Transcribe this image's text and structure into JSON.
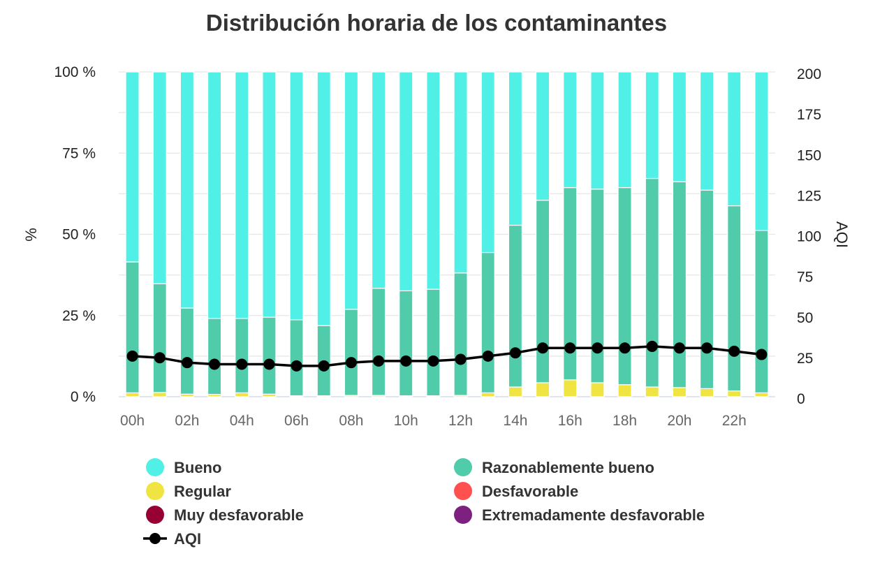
{
  "chart_data": {
    "type": "bar",
    "title": "Distribución horaria de los contaminantes",
    "ylabel": "%",
    "y2label": "AQI",
    "ylim": [
      0,
      100
    ],
    "y2lim": [
      0,
      200
    ],
    "yticks": [
      "0 %",
      "25 %",
      "50 %",
      "75 %",
      "100 %"
    ],
    "y2ticks": [
      "0",
      "25",
      "50",
      "75",
      "100",
      "125",
      "150",
      "175",
      "200"
    ],
    "categories": [
      "00h",
      "01h",
      "02h",
      "03h",
      "04h",
      "05h",
      "06h",
      "07h",
      "08h",
      "09h",
      "10h",
      "11h",
      "12h",
      "13h",
      "14h",
      "15h",
      "16h",
      "17h",
      "18h",
      "19h",
      "20h",
      "21h",
      "22h",
      "23h"
    ],
    "xtick_labels": [
      "00h",
      "02h",
      "04h",
      "06h",
      "08h",
      "10h",
      "12h",
      "14h",
      "16h",
      "18h",
      "20h",
      "22h"
    ],
    "stacked": true,
    "series": [
      {
        "name": "Regular",
        "color": "#f0e442",
        "values": [
          1.2,
          1.3,
          0.8,
          0.7,
          1.2,
          0.8,
          0.3,
          0.3,
          0.4,
          0.4,
          0.3,
          0.3,
          0.4,
          1.2,
          3.0,
          4.3,
          5.2,
          4.3,
          3.7,
          3.0,
          2.8,
          2.5,
          1.8,
          1.2
        ]
      },
      {
        "name": "Razonablemente bueno",
        "color": "#50ccaa",
        "values": [
          40.3,
          33.5,
          26.5,
          23.4,
          22.9,
          23.7,
          23.4,
          21.6,
          26.5,
          33.0,
          32.3,
          32.8,
          37.7,
          43.2,
          49.8,
          56.2,
          59.2,
          59.6,
          60.7,
          64.2,
          63.4,
          61.1,
          57.0,
          50.0
        ]
      },
      {
        "name": "Bueno",
        "color": "#50f0e6",
        "values": [
          58.5,
          65.2,
          72.7,
          75.9,
          75.9,
          75.5,
          76.3,
          78.1,
          73.1,
          66.6,
          67.4,
          66.9,
          61.9,
          55.6,
          47.2,
          39.5,
          35.6,
          36.1,
          35.6,
          32.8,
          33.8,
          36.4,
          41.2,
          48.8
        ]
      }
    ],
    "line": {
      "name": "AQI",
      "color": "#000000",
      "values": [
        25,
        24,
        21,
        20,
        20,
        20,
        19,
        19,
        21,
        22,
        22,
        22,
        23,
        25,
        27,
        30,
        30,
        30,
        30,
        31,
        30,
        30,
        28,
        26
      ]
    },
    "legend": [
      {
        "label": "Bueno",
        "color": "#50f0e6",
        "marker": "circle"
      },
      {
        "label": "Razonablemente bueno",
        "color": "#50ccaa",
        "marker": "circle"
      },
      {
        "label": "Regular",
        "color": "#f0e442",
        "marker": "circle"
      },
      {
        "label": "Desfavorable",
        "color": "#ff5050",
        "marker": "circle"
      },
      {
        "label": "Muy desfavorable",
        "color": "#960032",
        "marker": "circle"
      },
      {
        "label": "Extremadamente desfavorable",
        "color": "#7d2181",
        "marker": "circle"
      },
      {
        "label": "AQI",
        "color": "#000000",
        "marker": "line"
      }
    ],
    "legend_position": "bottom",
    "grid": true
  }
}
